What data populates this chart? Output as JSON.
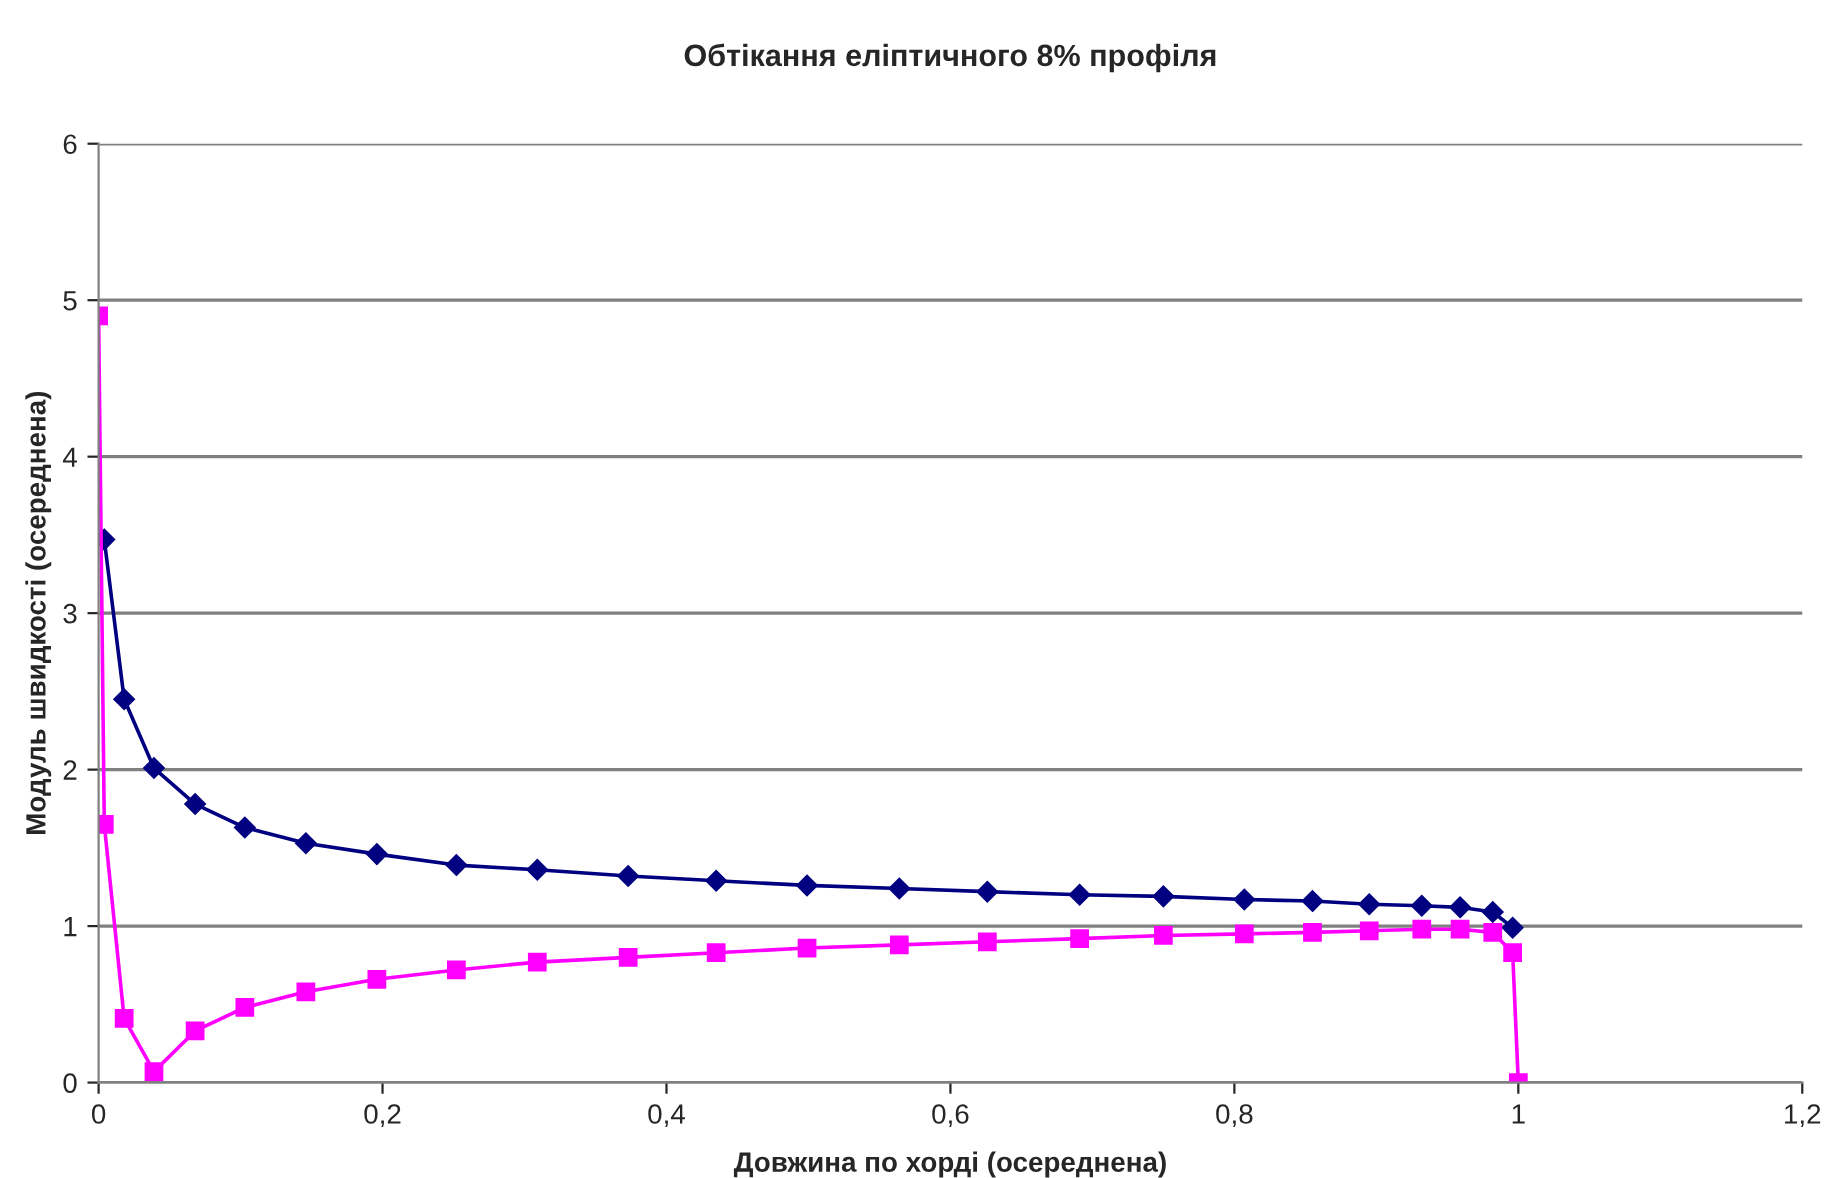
{
  "chart_data": {
    "type": "line",
    "title": "Обтікання еліптичного 8% профіля",
    "xlabel": "Довжина по хорді (осереднена)",
    "ylabel": "Модуль швидкості (осереднена)",
    "xlim": [
      0,
      1.2
    ],
    "xticks": [
      0,
      {
        "value": 0.2,
        "label": "0,2"
      },
      {
        "value": 0.4,
        "label": "0,4"
      },
      {
        "value": 0.6,
        "label": "0,6"
      },
      {
        "value": 0.8,
        "label": "0,8"
      },
      1,
      {
        "value": 1.2,
        "label": "1,2"
      }
    ],
    "ylim": [
      0,
      6
    ],
    "yticks": [
      0,
      1,
      2,
      3,
      4,
      5,
      6
    ],
    "grid": "y",
    "legend": false,
    "series": [
      {
        "color": "#000080",
        "marker": "diamond",
        "x": [
          0.004,
          0.018,
          0.039,
          0.068,
          0.103,
          0.146,
          0.196,
          0.252,
          0.309,
          0.373,
          0.435,
          0.499,
          0.564,
          0.626,
          0.691,
          0.75,
          0.807,
          0.855,
          0.895,
          0.932,
          0.959,
          0.982,
          0.996
        ],
        "values": [
          3.47,
          2.45,
          2.01,
          1.78,
          1.63,
          1.53,
          1.46,
          1.39,
          1.36,
          1.32,
          1.29,
          1.26,
          1.24,
          1.22,
          1.2,
          1.19,
          1.17,
          1.16,
          1.14,
          1.13,
          1.12,
          1.09,
          0.99
        ]
      },
      {
        "color": "#ff00ff",
        "marker": "square",
        "x": [
          0,
          0.004,
          0.018,
          0.039,
          0.068,
          0.103,
          0.146,
          0.196,
          0.252,
          0.309,
          0.373,
          0.435,
          0.499,
          0.564,
          0.626,
          0.691,
          0.75,
          0.807,
          0.855,
          0.895,
          0.932,
          0.959,
          0.982,
          0.996,
          1.0
        ],
        "values": [
          4.9,
          1.65,
          0.41,
          0.07,
          0.33,
          0.48,
          0.58,
          0.66,
          0.72,
          0.77,
          0.8,
          0.83,
          0.86,
          0.88,
          0.9,
          0.92,
          0.94,
          0.95,
          0.96,
          0.97,
          0.98,
          0.98,
          0.96,
          0.83,
          0.0
        ]
      }
    ]
  }
}
